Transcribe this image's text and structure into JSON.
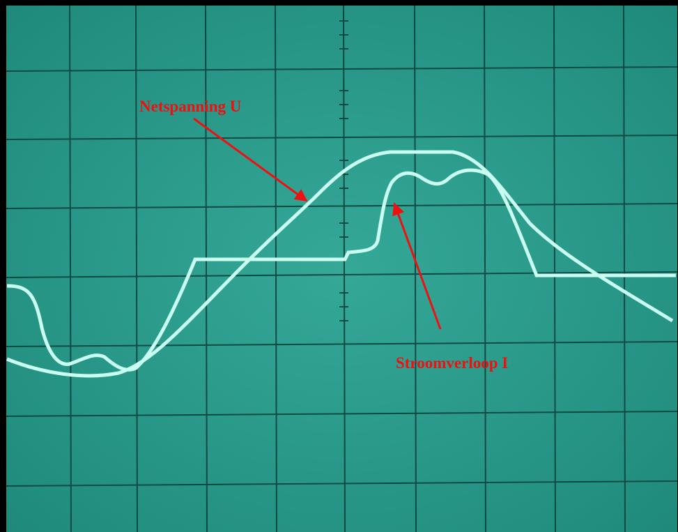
{
  "annotations": [
    {
      "label": "Netspanning U"
    },
    {
      "label": "Stroomverloop I"
    }
  ]
}
